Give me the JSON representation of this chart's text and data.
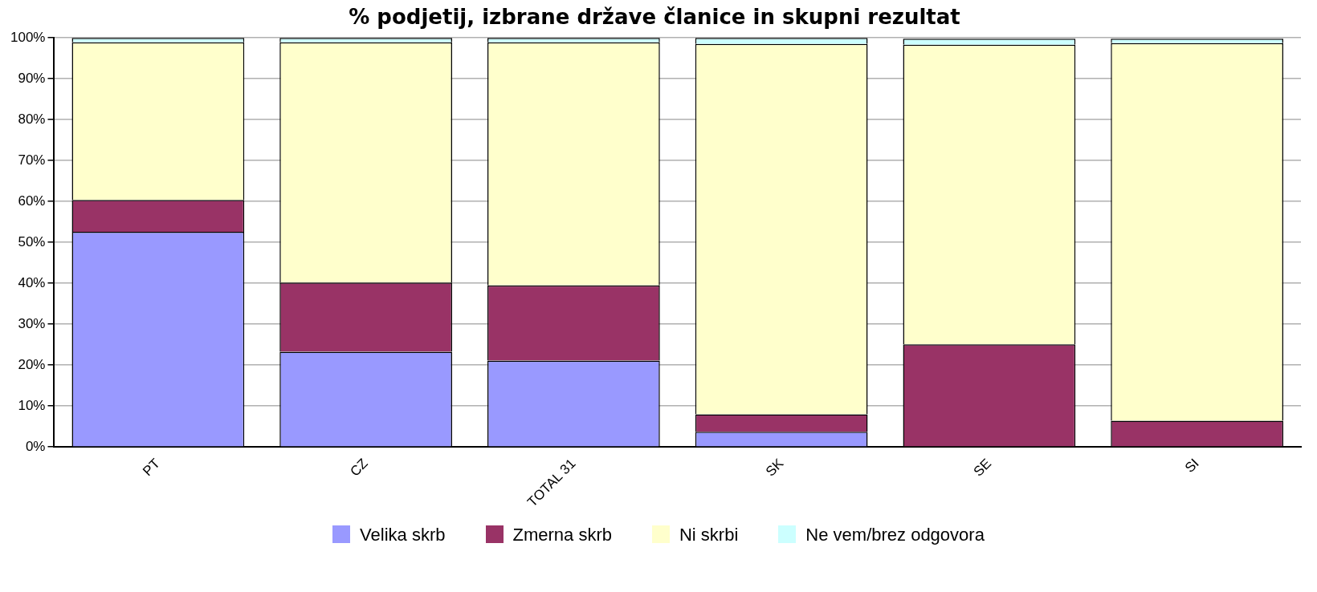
{
  "chart_data": {
    "type": "bar",
    "title": "% podjetij, izbrane države članice in skupni rezultat",
    "stacked": true,
    "categories": [
      "PT",
      "CZ",
      "TOTAL 31",
      "SK",
      "SE",
      "SI"
    ],
    "series": [
      {
        "name": "Velika skrb",
        "color": "#9999ff",
        "values": [
          52.6,
          23.3,
          21.1,
          3.7,
          null,
          null
        ]
      },
      {
        "name": "Zmerna skrb",
        "color": "#993366",
        "values": [
          7.8,
          16.9,
          18.4,
          4.3,
          25.1,
          6.4
        ]
      },
      {
        "name": "Ni skrbi",
        "color": "#ffffcc",
        "values": [
          38.5,
          58.7,
          59.4,
          90.5,
          73.2,
          92.3
        ]
      },
      {
        "name": "Ne vem/brez odgovora",
        "color": "#ccffff",
        "values": [
          1.1,
          1.1,
          1.1,
          1.5,
          1.5,
          1.1
        ]
      }
    ],
    "ylim": [
      0,
      100
    ],
    "yticks": [
      {
        "value": 0,
        "label": "0%"
      },
      {
        "value": 10,
        "label": "10%"
      },
      {
        "value": 20,
        "label": "20%"
      },
      {
        "value": 30,
        "label": "30%"
      },
      {
        "value": 40,
        "label": "40%"
      },
      {
        "value": 50,
        "label": "50%"
      },
      {
        "value": 60,
        "label": "60%"
      },
      {
        "value": 70,
        "label": "70%"
      },
      {
        "value": 80,
        "label": "80%"
      },
      {
        "value": 90,
        "label": "90%"
      },
      {
        "value": 100,
        "label": "100%"
      }
    ],
    "grid": "y",
    "legend": "bottom"
  }
}
